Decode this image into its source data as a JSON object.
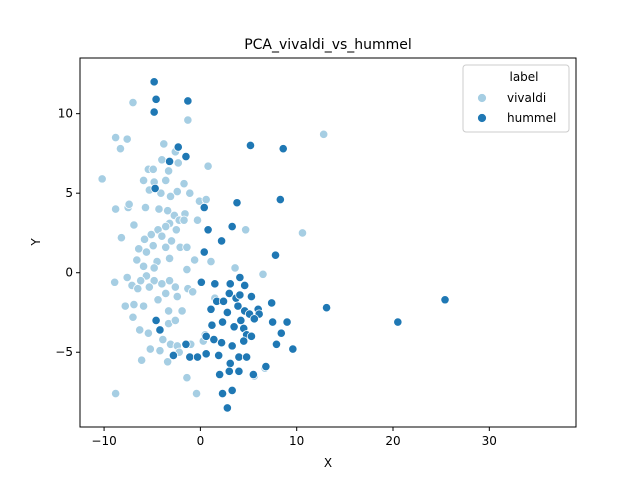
{
  "chart_data": {
    "type": "scatter",
    "title": "PCA_vivaldi_vs_hummel",
    "xlabel": "X",
    "ylabel": "Y",
    "xlim": [
      -12.5,
      39
    ],
    "ylim": [
      -9.7,
      13.5
    ],
    "xticks": [
      -10,
      0,
      10,
      20,
      30
    ],
    "yticks": [
      -5,
      0,
      5,
      10
    ],
    "grid": false,
    "legend": {
      "title": "label",
      "placement": "top-right"
    },
    "series": [
      {
        "name": "vivaldi",
        "color": "#a6cee3",
        "points": [
          [
            -10.2,
            5.9
          ],
          [
            -8.8,
            8.5
          ],
          [
            -8.3,
            7.8
          ],
          [
            -7.6,
            8.4
          ],
          [
            -7.0,
            10.7
          ],
          [
            -1.3,
            9.6
          ],
          [
            12.8,
            8.7
          ],
          [
            -3.8,
            8.1
          ],
          [
            -2.6,
            7.6
          ],
          [
            -4.0,
            7.1
          ],
          [
            -2.3,
            6.9
          ],
          [
            0.8,
            6.7
          ],
          [
            -5.4,
            6.5
          ],
          [
            -4.9,
            6.5
          ],
          [
            -3.3,
            6.4
          ],
          [
            -5.9,
            5.8
          ],
          [
            -4.8,
            5.7
          ],
          [
            -3.6,
            5.8
          ],
          [
            -1.7,
            5.6
          ],
          [
            -5.3,
            5.2
          ],
          [
            -4.1,
            5.0
          ],
          [
            -2.4,
            5.1
          ],
          [
            -1.1,
            5.0
          ],
          [
            -0.1,
            4.5
          ],
          [
            0.6,
            4.6
          ],
          [
            -3.1,
            4.8
          ],
          [
            -8.8,
            4.0
          ],
          [
            -7.5,
            4.1
          ],
          [
            -7.4,
            4.3
          ],
          [
            -5.7,
            4.1
          ],
          [
            -4.3,
            4.0
          ],
          [
            -3.4,
            3.9
          ],
          [
            -2.7,
            3.6
          ],
          [
            -3.2,
            3.1
          ],
          [
            -2.2,
            3.3
          ],
          [
            -1.6,
            3.7
          ],
          [
            -3.6,
            2.9
          ],
          [
            -4.4,
            2.7
          ],
          [
            -5.1,
            2.4
          ],
          [
            -6.9,
            3.0
          ],
          [
            -8.2,
            2.2
          ],
          [
            -5.8,
            2.1
          ],
          [
            -4.0,
            2.3
          ],
          [
            -3.0,
            2.0
          ],
          [
            -2.5,
            2.7
          ],
          [
            -1.7,
            3.3
          ],
          [
            -0.3,
            3.3
          ],
          [
            4.7,
            2.7
          ],
          [
            10.6,
            2.5
          ],
          [
            -6.4,
            1.5
          ],
          [
            -4.9,
            1.7
          ],
          [
            -3.6,
            1.6
          ],
          [
            -2.1,
            1.6
          ],
          [
            -1.4,
            1.6
          ],
          [
            -5.6,
            1.3
          ],
          [
            -3.2,
            0.9
          ],
          [
            -4.5,
            0.7
          ],
          [
            -6.6,
            0.8
          ],
          [
            -5.9,
            0.4
          ],
          [
            -4.8,
            0.3
          ],
          [
            -0.6,
            0.8
          ],
          [
            1.1,
            0.7
          ],
          [
            -1.4,
            0.2
          ],
          [
            -5.6,
            -0.2
          ],
          [
            -7.6,
            -0.3
          ],
          [
            -6.2,
            -0.5
          ],
          [
            -4.8,
            -0.5
          ],
          [
            -4.0,
            -0.7
          ],
          [
            -3.2,
            -0.5
          ],
          [
            -2.6,
            -0.9
          ],
          [
            -8.9,
            -0.6
          ],
          [
            -7.1,
            -0.8
          ],
          [
            -6.5,
            -1.0
          ],
          [
            -5.3,
            -0.9
          ],
          [
            -3.6,
            -1.3
          ],
          [
            -1.3,
            -1.0
          ],
          [
            -0.8,
            -1.2
          ],
          [
            -4.4,
            -1.7
          ],
          [
            -2.4,
            -1.5
          ],
          [
            1.5,
            -1.6
          ],
          [
            3.6,
            0.3
          ],
          [
            6.5,
            -0.1
          ],
          [
            -7.8,
            -2.1
          ],
          [
            -6.9,
            -2.0
          ],
          [
            -5.9,
            -2.1
          ],
          [
            -3.3,
            -2.4
          ],
          [
            -1.9,
            -2.4
          ],
          [
            -7.0,
            -2.8
          ],
          [
            -6.3,
            -3.6
          ],
          [
            -5.4,
            -3.8
          ],
          [
            -3.3,
            -3.2
          ],
          [
            -2.6,
            -3.0
          ],
          [
            -5.2,
            -4.8
          ],
          [
            -4.2,
            -4.9
          ],
          [
            -3.9,
            -4.2
          ],
          [
            -3.1,
            -4.5
          ],
          [
            -2.4,
            -4.6
          ],
          [
            -1.0,
            -4.5
          ],
          [
            0.3,
            -4.3
          ],
          [
            0.5,
            -3.9
          ],
          [
            -6.1,
            -5.5
          ],
          [
            -3.4,
            -5.6
          ],
          [
            -2.2,
            -5.0
          ],
          [
            -1.4,
            -6.6
          ],
          [
            -0.4,
            -7.6
          ],
          [
            -8.8,
            -7.6
          ],
          [
            6.7,
            -6.0
          ],
          [
            5.6,
            -6.5
          ]
        ]
      },
      {
        "name": "hummel",
        "color": "#1f78b4",
        "points": [
          [
            -4.8,
            12.0
          ],
          [
            -4.6,
            10.9
          ],
          [
            -4.8,
            10.1
          ],
          [
            -1.3,
            10.8
          ],
          [
            -2.3,
            7.9
          ],
          [
            -1.5,
            7.3
          ],
          [
            -3.2,
            7.0
          ],
          [
            5.2,
            8.0
          ],
          [
            8.6,
            7.8
          ],
          [
            -4.7,
            5.3
          ],
          [
            0.4,
            4.1
          ],
          [
            3.8,
            4.4
          ],
          [
            8.3,
            4.6
          ],
          [
            3.3,
            2.9
          ],
          [
            0.8,
            2.7
          ],
          [
            2.2,
            2.0
          ],
          [
            0.4,
            1.3
          ],
          [
            7.8,
            1.1
          ],
          [
            0.1,
            -0.6
          ],
          [
            1.5,
            -0.7
          ],
          [
            3.1,
            -0.7
          ],
          [
            4.1,
            -0.3
          ],
          [
            4.6,
            -0.8
          ],
          [
            1.7,
            -1.8
          ],
          [
            2.4,
            -1.8
          ],
          [
            3.0,
            -1.3
          ],
          [
            3.7,
            -1.6
          ],
          [
            4.1,
            -1.4
          ],
          [
            5.3,
            -1.5
          ],
          [
            7.4,
            -1.9
          ],
          [
            1.1,
            -2.3
          ],
          [
            2.8,
            -2.5
          ],
          [
            3.9,
            -2.1
          ],
          [
            4.6,
            -2.4
          ],
          [
            5.1,
            -2.6
          ],
          [
            6.0,
            -2.3
          ],
          [
            6.1,
            -2.6
          ],
          [
            13.1,
            -2.2
          ],
          [
            25.4,
            -1.7
          ],
          [
            20.5,
            -3.1
          ],
          [
            -4.6,
            -3.0
          ],
          [
            -4.2,
            -3.6
          ],
          [
            1.2,
            -3.3
          ],
          [
            2.3,
            -3.1
          ],
          [
            3.5,
            -3.4
          ],
          [
            4.2,
            -3.0
          ],
          [
            4.5,
            -3.5
          ],
          [
            4.8,
            -3.9
          ],
          [
            5.6,
            -2.9
          ],
          [
            7.5,
            -3.1
          ],
          [
            9.0,
            -3.1
          ],
          [
            -1.5,
            -4.5
          ],
          [
            0.6,
            -4.0
          ],
          [
            1.4,
            -4.2
          ],
          [
            2.2,
            -4.4
          ],
          [
            3.3,
            -4.6
          ],
          [
            4.5,
            -4.3
          ],
          [
            5.3,
            -4.0
          ],
          [
            7.9,
            -4.5
          ],
          [
            8.4,
            -3.8
          ],
          [
            9.6,
            -4.8
          ],
          [
            -2.8,
            -5.2
          ],
          [
            -1.1,
            -5.3
          ],
          [
            -0.3,
            -5.3
          ],
          [
            0.6,
            -5.1
          ],
          [
            1.9,
            -5.2
          ],
          [
            3.1,
            -5.7
          ],
          [
            4.0,
            -5.3
          ],
          [
            4.8,
            -5.3
          ],
          [
            2.0,
            -6.4
          ],
          [
            3.0,
            -6.2
          ],
          [
            4.0,
            -6.2
          ],
          [
            5.5,
            -6.4
          ],
          [
            6.8,
            -5.9
          ],
          [
            3.3,
            -7.4
          ],
          [
            2.3,
            -7.6
          ],
          [
            2.8,
            -8.5
          ]
        ]
      }
    ]
  }
}
